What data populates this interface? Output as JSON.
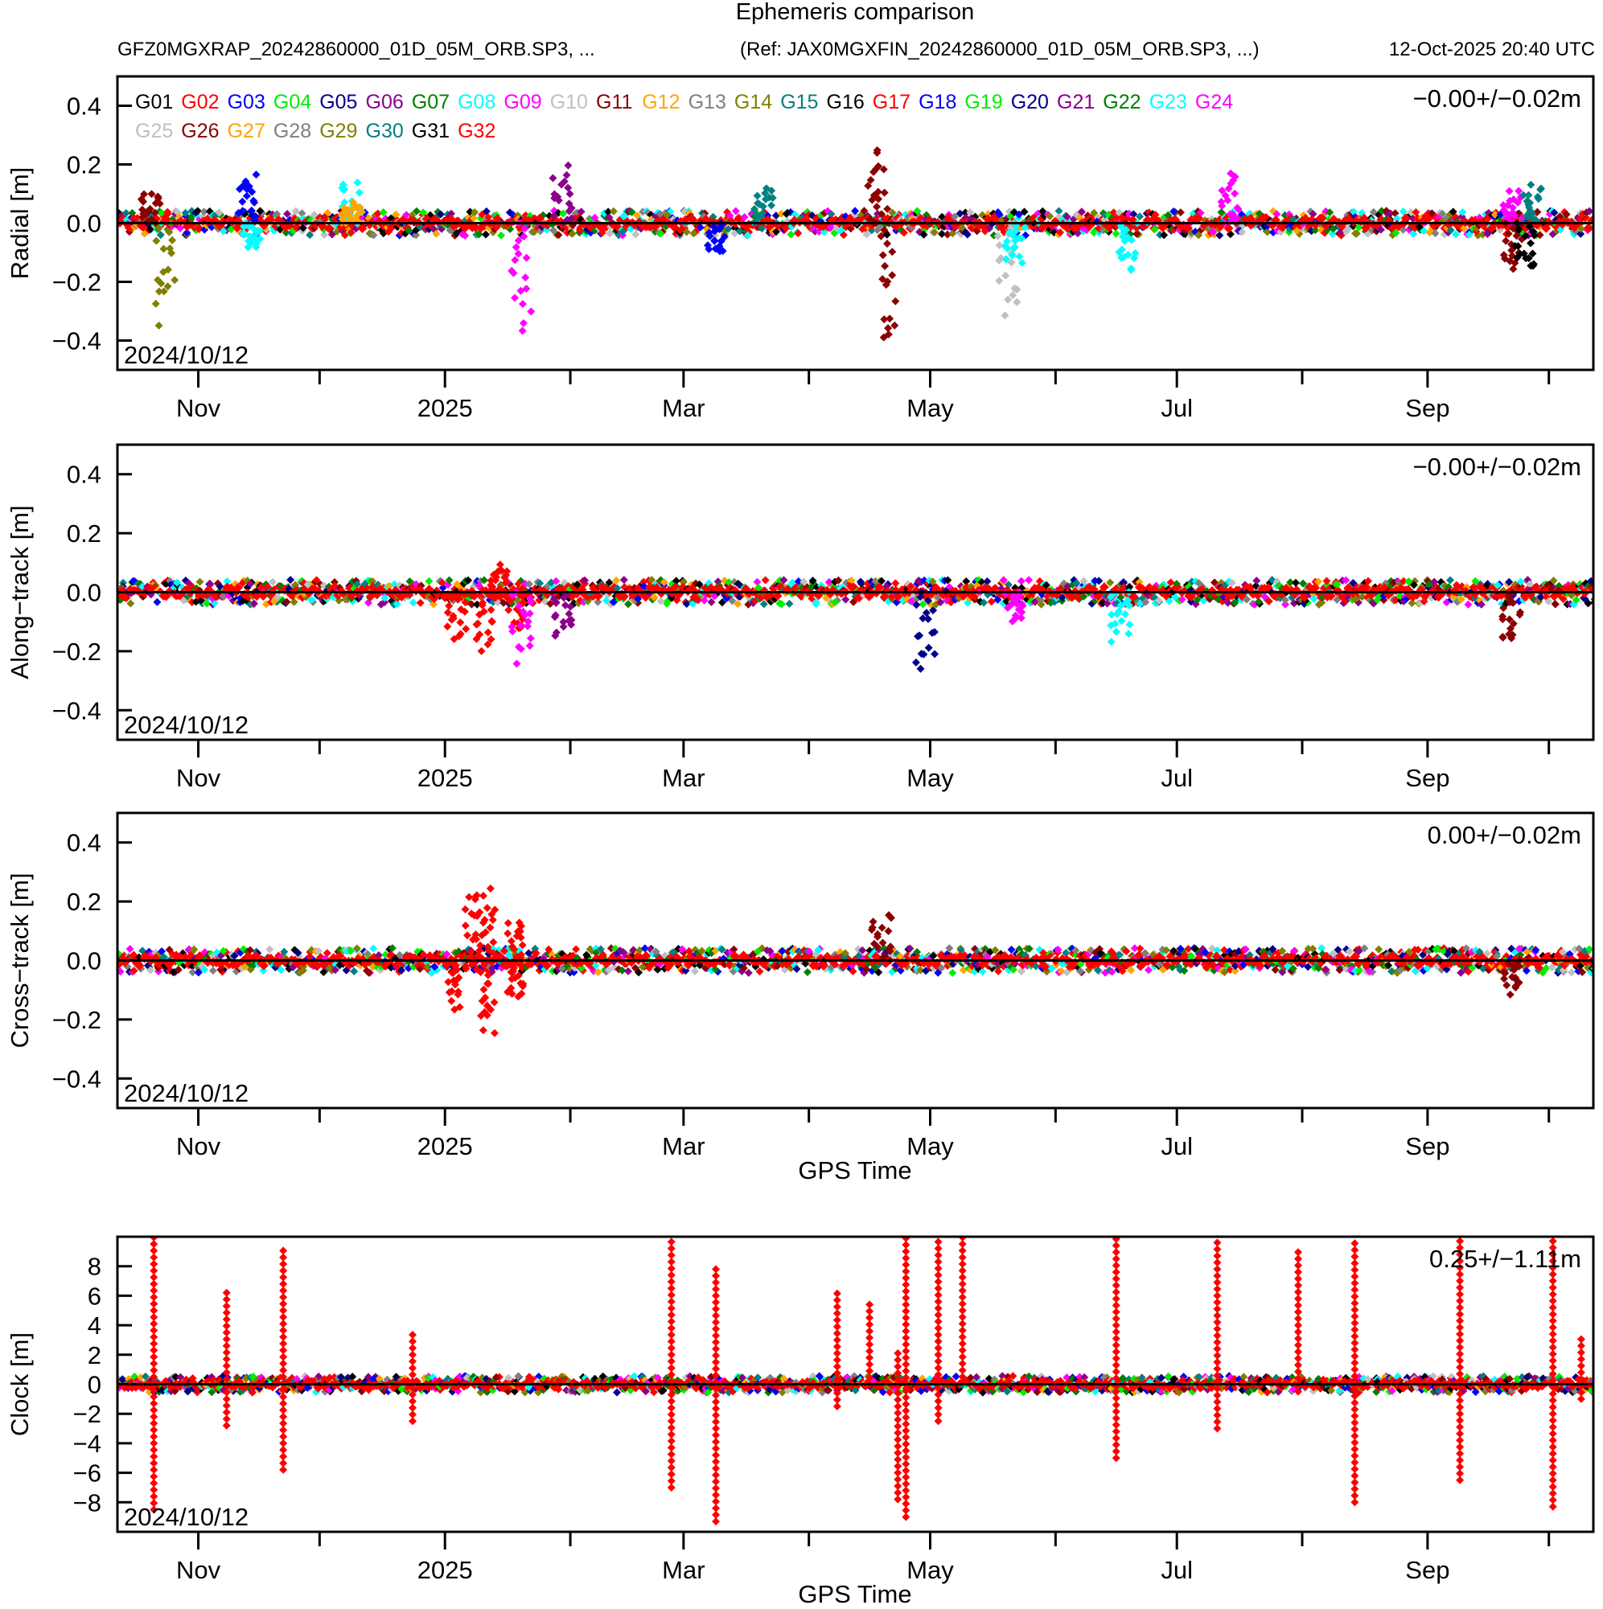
{
  "chart_data": {
    "type": "scatter",
    "title": "Ephemeris comparison",
    "subtitle_left": "GFZ0MGXRAP_20242860000_01D_05M_ORB.SP3, ...",
    "subtitle_ref": "(Ref: JAX0MGXFIN_20242860000_01D_05M_ORB.SP3, ...)",
    "subtitle_time": "12-Oct-2025 20:40 UTC",
    "x_range_days": [
      0,
      365
    ],
    "start_date_label": "2024/10/12",
    "x_ticks": [
      {
        "day": 20,
        "label": "Nov"
      },
      {
        "day": 50,
        "label": ""
      },
      {
        "day": 81,
        "label": "2025"
      },
      {
        "day": 112,
        "label": ""
      },
      {
        "day": 140,
        "label": "Mar"
      },
      {
        "day": 171,
        "label": ""
      },
      {
        "day": 201,
        "label": "May"
      },
      {
        "day": 232,
        "label": ""
      },
      {
        "day": 262,
        "label": "Jul"
      },
      {
        "day": 293,
        "label": ""
      },
      {
        "day": 324,
        "label": "Sep"
      },
      {
        "day": 354,
        "label": ""
      }
    ],
    "legend": [
      {
        "name": "G01",
        "color": "#000000"
      },
      {
        "name": "G02",
        "color": "#ff0000"
      },
      {
        "name": "G03",
        "color": "#0000ff"
      },
      {
        "name": "G04",
        "color": "#00ee00"
      },
      {
        "name": "G05",
        "color": "#00008b"
      },
      {
        "name": "G06",
        "color": "#8b008b"
      },
      {
        "name": "G07",
        "color": "#008000"
      },
      {
        "name": "G08",
        "color": "#00ffff"
      },
      {
        "name": "G09",
        "color": "#ff00ff"
      },
      {
        "name": "G10",
        "color": "#c0c0c0"
      },
      {
        "name": "G11",
        "color": "#8b0000"
      },
      {
        "name": "G12",
        "color": "#ffa500"
      },
      {
        "name": "G13",
        "color": "#808080"
      },
      {
        "name": "G14",
        "color": "#808000"
      },
      {
        "name": "G15",
        "color": "#008080"
      },
      {
        "name": "G16",
        "color": "#000000"
      },
      {
        "name": "G17",
        "color": "#ff0000"
      },
      {
        "name": "G18",
        "color": "#0000ff"
      },
      {
        "name": "G19",
        "color": "#00ee00"
      },
      {
        "name": "G20",
        "color": "#00008b"
      },
      {
        "name": "G21",
        "color": "#8b008b"
      },
      {
        "name": "G22",
        "color": "#008000"
      },
      {
        "name": "G23",
        "color": "#00ffff"
      },
      {
        "name": "G24",
        "color": "#ff00ff"
      },
      {
        "name": "G25",
        "color": "#c0c0c0"
      },
      {
        "name": "G26",
        "color": "#8b0000"
      },
      {
        "name": "G27",
        "color": "#ffa500"
      },
      {
        "name": "G28",
        "color": "#808080"
      },
      {
        "name": "G29",
        "color": "#808000"
      },
      {
        "name": "G30",
        "color": "#008080"
      },
      {
        "name": "G31",
        "color": "#000000"
      },
      {
        "name": "G32",
        "color": "#ff0000"
      }
    ],
    "legend_placement": "top-left",
    "panels": [
      {
        "id": "radial",
        "ylabel": "Radial [m]",
        "ylim": [
          -0.5,
          0.5
        ],
        "yticks": [
          {
            "v": 0.4,
            "label": "0.4"
          },
          {
            "v": 0.2,
            "label": "0.2"
          },
          {
            "v": 0.0,
            "label": "0.0"
          },
          {
            "v": -0.2,
            "label": "−0.2"
          },
          {
            "v": -0.4,
            "label": "−0.4"
          }
        ],
        "stat": "−0.00+/−0.02m",
        "xlabel": "",
        "noise": 0.03,
        "events": [
          {
            "day": 8,
            "amp": 0.12,
            "sat": "G26"
          },
          {
            "day": 12,
            "amp": -0.35,
            "sat": "G29"
          },
          {
            "day": 32,
            "amp": 0.2,
            "sat": "G03"
          },
          {
            "day": 33,
            "amp": -0.1,
            "sat": "G08"
          },
          {
            "day": 58,
            "amp": 0.15,
            "sat": "G08"
          },
          {
            "day": 58,
            "amp": 0.08,
            "sat": "G12"
          },
          {
            "day": 100,
            "amp": -0.4,
            "sat": "G09"
          },
          {
            "day": 110,
            "amp": 0.2,
            "sat": "G21"
          },
          {
            "day": 148,
            "amp": -0.12,
            "sat": "G03"
          },
          {
            "day": 160,
            "amp": 0.15,
            "sat": "G30"
          },
          {
            "day": 188,
            "amp": 0.28,
            "sat": "G11"
          },
          {
            "day": 190,
            "amp": -0.48,
            "sat": "G11"
          },
          {
            "day": 220,
            "amp": -0.35,
            "sat": "G10"
          },
          {
            "day": 222,
            "amp": -0.15,
            "sat": "G08"
          },
          {
            "day": 250,
            "amp": -0.18,
            "sat": "G23"
          },
          {
            "day": 275,
            "amp": 0.18,
            "sat": "G24"
          },
          {
            "day": 345,
            "amp": 0.12,
            "sat": "G24"
          },
          {
            "day": 350,
            "amp": 0.15,
            "sat": "G15"
          },
          {
            "day": 345,
            "amp": -0.18,
            "sat": "G26"
          },
          {
            "day": 348,
            "amp": -0.2,
            "sat": "G01"
          }
        ]
      },
      {
        "id": "along",
        "ylabel": "Along−track [m]",
        "ylim": [
          -0.5,
          0.5
        ],
        "yticks": [
          {
            "v": 0.4,
            "label": "0.4"
          },
          {
            "v": 0.2,
            "label": "0.2"
          },
          {
            "v": 0.0,
            "label": "0.0"
          },
          {
            "v": -0.2,
            "label": "−0.2"
          },
          {
            "v": -0.4,
            "label": "−0.4"
          }
        ],
        "stat": "−0.00+/−0.02m",
        "xlabel": "",
        "noise": 0.03,
        "events": [
          {
            "day": 84,
            "amp": -0.18,
            "sat": "G02"
          },
          {
            "day": 91,
            "amp": -0.22,
            "sat": "G02"
          },
          {
            "day": 94,
            "amp": 0.1,
            "sat": "G02"
          },
          {
            "day": 98,
            "amp": -0.15,
            "sat": "G02"
          },
          {
            "day": 100,
            "amp": -0.25,
            "sat": "G09"
          },
          {
            "day": 110,
            "amp": -0.16,
            "sat": "G21"
          },
          {
            "day": 200,
            "amp": -0.3,
            "sat": "G05"
          },
          {
            "day": 222,
            "amp": -0.1,
            "sat": "G09"
          },
          {
            "day": 248,
            "amp": -0.18,
            "sat": "G08"
          },
          {
            "day": 345,
            "amp": -0.2,
            "sat": "G11"
          }
        ]
      },
      {
        "id": "cross",
        "ylabel": "Cross−track [m]",
        "ylim": [
          -0.5,
          0.5
        ],
        "yticks": [
          {
            "v": 0.4,
            "label": "0.4"
          },
          {
            "v": 0.2,
            "label": "0.2"
          },
          {
            "v": 0.0,
            "label": "0.0"
          },
          {
            "v": -0.2,
            "label": "−0.2"
          },
          {
            "v": -0.4,
            "label": "−0.4"
          }
        ],
        "stat": "0.00+/−0.02m",
        "xlabel": "GPS Time",
        "noise": 0.03,
        "events": [
          {
            "day": 84,
            "amp": -0.18,
            "sat": "G02"
          },
          {
            "day": 88,
            "amp": 0.25,
            "sat": "G02"
          },
          {
            "day": 91,
            "amp": 0.28,
            "sat": "G02"
          },
          {
            "day": 91,
            "amp": -0.28,
            "sat": "G02"
          },
          {
            "day": 98,
            "amp": 0.15,
            "sat": "G02"
          },
          {
            "day": 98,
            "amp": -0.15,
            "sat": "G02"
          },
          {
            "day": 189,
            "amp": 0.18,
            "sat": "G11"
          },
          {
            "day": 345,
            "amp": -0.12,
            "sat": "G11"
          }
        ]
      },
      {
        "id": "clock",
        "ylabel": "Clock [m]",
        "ylim": [
          -10,
          10
        ],
        "yticks": [
          {
            "v": 8,
            "label": "8"
          },
          {
            "v": 6,
            "label": "6"
          },
          {
            "v": 4,
            "label": "4"
          },
          {
            "v": 2,
            "label": "2"
          },
          {
            "v": 0,
            "label": "0"
          },
          {
            "v": -2,
            "label": "−2"
          },
          {
            "v": -4,
            "label": "−4"
          },
          {
            "v": -6,
            "label": "−6"
          },
          {
            "v": -8,
            "label": "−8"
          }
        ],
        "stat": "0.25+/−1.11m",
        "xlabel": "GPS Time",
        "noise": 0.4,
        "spikes": [
          {
            "day": 9,
            "lo": -8.5,
            "hi": 10
          },
          {
            "day": 27,
            "lo": -2.8,
            "hi": 6.5
          },
          {
            "day": 41,
            "lo": -5.8,
            "hi": 9.5
          },
          {
            "day": 73,
            "lo": -2.5,
            "hi": 3.5
          },
          {
            "day": 137,
            "lo": -7,
            "hi": 10
          },
          {
            "day": 148,
            "lo": -9.3,
            "hi": 8
          },
          {
            "day": 178,
            "lo": -1.5,
            "hi": 6.5
          },
          {
            "day": 186,
            "lo": 0,
            "hi": 5.5
          },
          {
            "day": 193,
            "lo": -7.8,
            "hi": 2.5
          },
          {
            "day": 195,
            "lo": -9,
            "hi": 10
          },
          {
            "day": 203,
            "lo": -2.5,
            "hi": 10
          },
          {
            "day": 209,
            "lo": 0.5,
            "hi": 10
          },
          {
            "day": 247,
            "lo": -5,
            "hi": 10
          },
          {
            "day": 272,
            "lo": -3,
            "hi": 10
          },
          {
            "day": 292,
            "lo": -0.5,
            "hi": 9
          },
          {
            "day": 306,
            "lo": -8,
            "hi": 10
          },
          {
            "day": 332,
            "lo": -6.5,
            "hi": 10
          },
          {
            "day": 355,
            "lo": -8.3,
            "hi": 10
          },
          {
            "day": 362,
            "lo": -1,
            "hi": 3.5
          }
        ]
      }
    ]
  }
}
